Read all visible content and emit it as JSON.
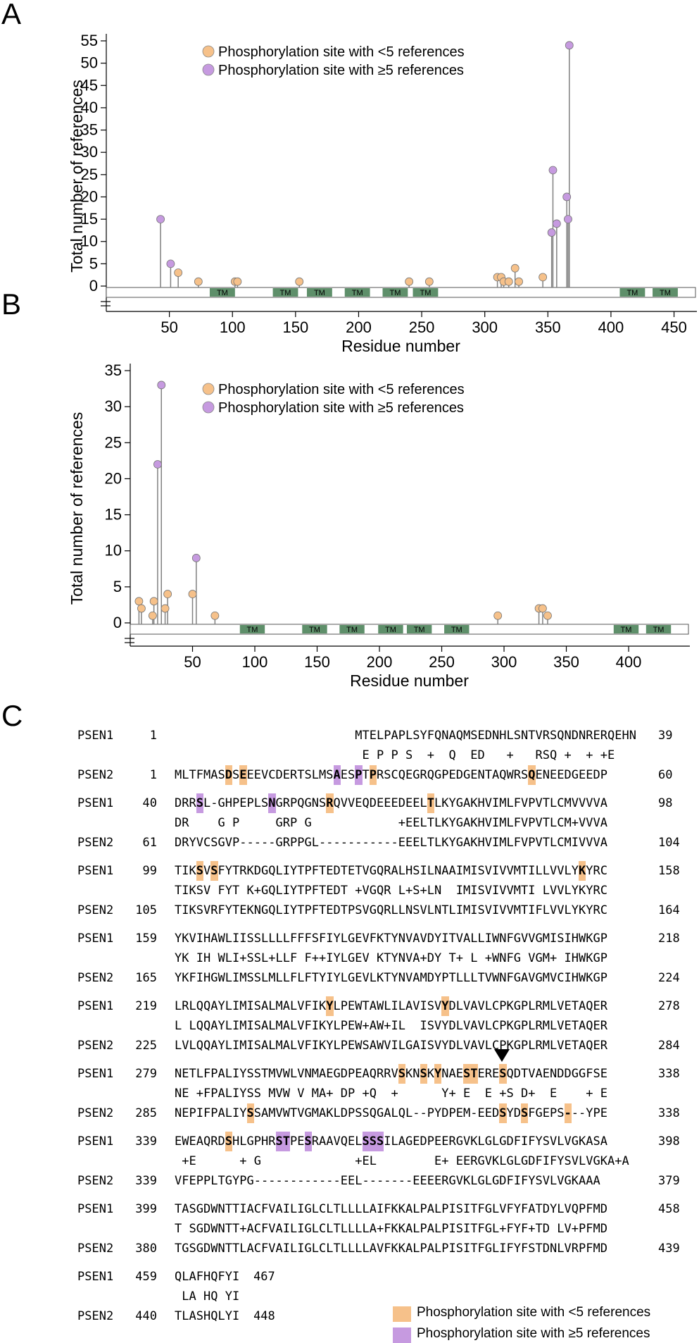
{
  "panels": {
    "a": "A",
    "b": "B",
    "c": "C"
  },
  "colors": {
    "low": "#f6c18a",
    "high": "#c69ae0",
    "tm": "#5e8f6a",
    "stem": "#808080"
  },
  "chart_data": [
    {
      "type": "scatter",
      "panel": "A",
      "xlabel": "Residue number",
      "ylabel": "Total number of references",
      "xlim": [
        0,
        467
      ],
      "ylim": [
        0,
        55
      ],
      "xticks": [
        50,
        100,
        150,
        200,
        250,
        300,
        350,
        400,
        450
      ],
      "yticks": [
        0,
        5,
        10,
        15,
        20,
        25,
        30,
        35,
        40,
        45,
        50,
        55
      ],
      "legend": [
        "Phosphorylation site with <5 references",
        "Phosphorylation site with ≥5 references"
      ],
      "legend_position": "top-left",
      "tm_label": "TM",
      "tm_regions": [
        [
          82,
          102
        ],
        [
          132,
          152
        ],
        [
          159,
          179
        ],
        [
          189,
          209
        ],
        [
          219,
          239
        ],
        [
          243,
          263
        ],
        [
          407,
          427
        ],
        [
          433,
          453
        ]
      ],
      "points": [
        {
          "x": 43,
          "y": 15,
          "g": "high"
        },
        {
          "x": 51,
          "y": 5,
          "g": "high"
        },
        {
          "x": 57,
          "y": 3,
          "g": "low"
        },
        {
          "x": 73,
          "y": 1,
          "g": "low"
        },
        {
          "x": 102,
          "y": 1,
          "g": "low"
        },
        {
          "x": 104,
          "y": 1,
          "g": "low"
        },
        {
          "x": 153,
          "y": 1,
          "g": "low"
        },
        {
          "x": 240,
          "y": 1,
          "g": "low"
        },
        {
          "x": 256,
          "y": 1,
          "g": "low"
        },
        {
          "x": 310,
          "y": 2,
          "g": "low"
        },
        {
          "x": 313,
          "y": 2,
          "g": "low"
        },
        {
          "x": 315,
          "y": 1,
          "g": "low"
        },
        {
          "x": 319,
          "y": 1,
          "g": "low"
        },
        {
          "x": 324,
          "y": 4,
          "g": "low"
        },
        {
          "x": 327,
          "y": 1,
          "g": "low"
        },
        {
          "x": 346,
          "y": 2,
          "g": "low"
        },
        {
          "x": 353,
          "y": 12,
          "g": "high"
        },
        {
          "x": 354,
          "y": 26,
          "g": "high"
        },
        {
          "x": 357,
          "y": 14,
          "g": "high"
        },
        {
          "x": 365,
          "y": 20,
          "g": "high"
        },
        {
          "x": 366,
          "y": 15,
          "g": "high"
        },
        {
          "x": 367,
          "y": 54,
          "g": "high"
        }
      ]
    },
    {
      "type": "scatter",
      "panel": "B",
      "xlabel": "Residue number",
      "ylabel": "Total number of references",
      "xlim": [
        0,
        448
      ],
      "ylim": [
        0,
        35
      ],
      "xticks": [
        50,
        100,
        150,
        200,
        250,
        300,
        350,
        400
      ],
      "yticks": [
        0,
        5,
        10,
        15,
        20,
        25,
        30,
        35
      ],
      "legend": [
        "Phosphorylation site with <5 references",
        "Phosphorylation site with ≥5 references"
      ],
      "legend_position": "top-left",
      "tm_label": "TM",
      "tm_regions": [
        [
          88,
          108
        ],
        [
          138,
          158
        ],
        [
          168,
          188
        ],
        [
          199,
          219
        ],
        [
          222,
          242
        ],
        [
          252,
          272
        ],
        [
          388,
          408
        ],
        [
          414,
          434
        ]
      ],
      "points": [
        {
          "x": 7,
          "y": 3,
          "g": "low"
        },
        {
          "x": 9,
          "y": 2,
          "g": "low"
        },
        {
          "x": 18,
          "y": 1,
          "g": "low"
        },
        {
          "x": 19,
          "y": 3,
          "g": "low"
        },
        {
          "x": 22,
          "y": 22,
          "g": "high"
        },
        {
          "x": 25,
          "y": 33,
          "g": "high"
        },
        {
          "x": 28,
          "y": 2,
          "g": "low"
        },
        {
          "x": 30,
          "y": 4,
          "g": "low"
        },
        {
          "x": 50,
          "y": 4,
          "g": "low"
        },
        {
          "x": 53,
          "y": 9,
          "g": "high"
        },
        {
          "x": 68,
          "y": 1,
          "g": "low"
        },
        {
          "x": 295,
          "y": 1,
          "g": "low"
        },
        {
          "x": 328,
          "y": 2,
          "g": "low"
        },
        {
          "x": 331,
          "y": 2,
          "g": "low"
        },
        {
          "x": 335,
          "y": 1,
          "g": "low"
        }
      ]
    }
  ],
  "alignment": {
    "blocks": [
      {
        "n1": "PSEN1",
        "s1": "1",
        "q": "                         MTELPAPLSYFQNAQMSEDNHLSNTVRSQNDNRERQEHN",
        "e1": "39",
        "m": "                          E P P S  +  Q  ED   +   RSQ +  + +E",
        "n2": "PSEN2",
        "s2": "1",
        "t": "MLTFMASDSEEEVCDERTSLMSAESPTPRSCQEGRQGPEDGENTAQWRSQENEEDGEEDP",
        "e2": "60",
        "mq": [],
        "mt": [
          [
            7,
            "low"
          ],
          [
            9,
            "low"
          ],
          [
            22,
            "high"
          ],
          [
            25,
            "high"
          ],
          [
            27,
            "low"
          ],
          [
            49,
            "low"
          ]
        ]
      },
      {
        "n1": "PSEN1",
        "s1": "40",
        "q": "DRRSL-GHPEPLSNGRPQGNSRQVVEQDEEEDEELTLKYGAKHVIMLFVPVTLCMVVVVA",
        "e1": "98",
        "m": "DR    G P     GRP G            +EELTLKYGAKHVIMLFVPVTLCM+VVVA",
        "n2": "PSEN2",
        "s2": "61",
        "t": "DRYVCSGVP-----GRPPGL-----------EEELTLKYGAKHVIMLFVPVTLCMIVVVA",
        "e2": "104",
        "mq": [
          [
            3,
            "high"
          ],
          [
            13,
            "high"
          ],
          [
            21,
            "low"
          ],
          [
            35,
            "low"
          ]
        ],
        "mt": []
      },
      {
        "n1": "PSEN1",
        "s1": "99",
        "q": "TIKSVSFYTRKDGQLIYTPFTEDTETVGQRALHSILNAAIMISVIVVMTILLVVLYKYRC",
        "e1": "158",
        "m": "TIKSV FYT K+GQLIYTPFTEDT +VGQR L+S+LN  IMISVIVVMTI LVVLYKYRC",
        "n2": "PSEN2",
        "s2": "105",
        "t": "TIKSVRFYTEKNGQLIYTPFTEDTPSVGQRLLNSVLNTLIMISVIVVMTIFLVVLYKYRC",
        "e2": "164",
        "mq": [
          [
            3,
            "low"
          ],
          [
            5,
            "low"
          ],
          [
            56,
            "low"
          ]
        ],
        "mt": []
      },
      {
        "n1": "PSEN1",
        "s1": "159",
        "q": "YKVIHAWLIISSLLLLFFFSFIYLGEVFKTYNVAVDYITVALLIWNFGVVGMISIHWKGP",
        "e1": "218",
        "m": "YK IH WLI+SSL+LLF F++IYLGEV KTYNVA+DY T+ L +WNFG VGM+ IHWKGP",
        "n2": "PSEN2",
        "s2": "165",
        "t": "YKFIHGWLIMSSLMLLFLFTYIYLGEVLKTYNVAMDYPTLLLTVWNFGAVGMVCIHWKGP",
        "e2": "224",
        "mq": [],
        "mt": []
      },
      {
        "n1": "PSEN1",
        "s1": "219",
        "q": "LRLQQAYLIMISALMALVFIKYLPEWTAWLILAVISVYDLVAVLCPKGPLRMLVETAQER",
        "e1": "278",
        "m": "L LQQAYLIMISALMALVFIKYLPEW+AW+IL  ISVYDLVAVLCPKGPLRMLVETAQER",
        "n2": "PSEN2",
        "s2": "225",
        "t": "LVLQQAYLIMISALMALVFIKYLPEWSAWVILGAISVYDLVAVLCPKGPLRMLVETAQER",
        "e2": "284",
        "mq": [
          [
            21,
            "low"
          ],
          [
            37,
            "low"
          ]
        ],
        "mt": []
      },
      {
        "n1": "PSEN1",
        "s1": "279",
        "q": "NETLFPALIYSSTMVWLVNMAEGDPEAQRRVSKNSKYNAESTERESQDTVAENDDGGFSE",
        "e1": "338",
        "m": "NE +FPALIYSS MVW V MA+ DP +Q  +      Y+ E  E +S D+  E    + E",
        "n2": "PSEN2",
        "s2": "285",
        "t": "NEPIFPALIYSSAMVWTVGMAKLDPSSQGALQL--PYDPEM-EEDSYDSFGEPS---YPE",
        "e2": "338",
        "mq": [
          [
            31,
            "low"
          ],
          [
            34,
            "low"
          ],
          [
            36,
            "low"
          ],
          [
            40,
            "low"
          ],
          [
            41,
            "low"
          ],
          [
            45,
            "low"
          ]
        ],
        "mt": [
          [
            10,
            "low"
          ],
          [
            45,
            "low"
          ],
          [
            48,
            "low"
          ],
          [
            54,
            "low"
          ]
        ],
        "arrow_col": 45
      },
      {
        "n1": "PSEN1",
        "s1": "339",
        "q": "EWEAQRDSHLGPHRSTPESRAAVQELSSSILAGEDPEERGVKLGLGDFIFYSVLVGKASA",
        "e1": "398",
        "m": " +E      + G             +EL        E+ EERGVKLGLGDFIFYSVLVGKA+A",
        "n2": "PSEN2",
        "s2": "339",
        "t": "VFEPPLTGYPG------------EEL-------EEEERGVKLGLGDFIFYSVLVGKAAA",
        "e2": "379",
        "mq": [
          [
            7,
            "low"
          ],
          [
            14,
            "high"
          ],
          [
            15,
            "high"
          ],
          [
            18,
            "high"
          ],
          [
            26,
            "high"
          ],
          [
            27,
            "high"
          ],
          [
            28,
            "high"
          ]
        ],
        "mt": []
      },
      {
        "n1": "PSEN1",
        "s1": "399",
        "q": "TASGDWNTTIACFVAILIGLCLTLLLLAIFKKALPALPISITFGLVFYFATDYLVQPFMD",
        "e1": "458",
        "m": "T SGDWNTT+ACFVAILIGLCLTLLLLA+FKKALPALPISITFGL+FYF+TD LV+PFMD",
        "n2": "PSEN2",
        "s2": "380",
        "t": "TGSGDWNTTLACFVAILIGLCLTLLLLAVFKKALPALPISITFGLIFYFSTDNLVRPFMD",
        "e2": "439",
        "mq": [],
        "mt": []
      },
      {
        "n1": "PSEN1",
        "s1": "459",
        "q": "QLAFHQFYI",
        "e1": "467",
        "m": " LA HQ YI",
        "n2": "PSEN2",
        "s2": "440",
        "t": "TLASHQLYI",
        "e2": "448",
        "mq": [],
        "mt": []
      }
    ],
    "legend": {
      "low": "Phosphorylation site with <5 references",
      "high": "Phosphorylation site with ≥5 references"
    }
  }
}
